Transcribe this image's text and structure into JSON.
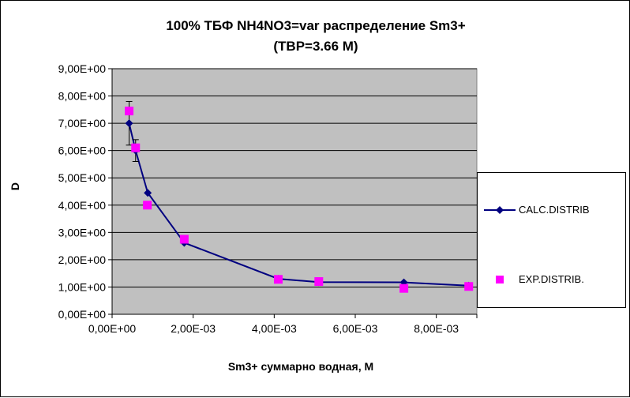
{
  "chart_data": {
    "type": "scatter",
    "title_line1": "100%  ТБФ  NH4NO3=var распределение Sm3+",
    "title_line2": "(ТВР=3.66 М)",
    "xlabel": "Sm3+ суммарно   водная, М",
    "ylabel": "D",
    "xlim": [
      0,
      0.009
    ],
    "ylim": [
      0,
      9
    ],
    "x_ticks": [
      0,
      0.002,
      0.004,
      0.006,
      0.008
    ],
    "x_tick_labels": [
      "0,00E+00",
      "2,00E-03",
      "4,00E-03",
      "6,00E-03",
      "8,00E-03"
    ],
    "y_ticks": [
      0,
      1,
      2,
      3,
      4,
      5,
      6,
      7,
      8,
      9
    ],
    "y_tick_labels": [
      "0,00E+00",
      "1,00E+00",
      "2,00E+00",
      "3,00E+00",
      "4,00E+00",
      "5,00E+00",
      "6,00E+00",
      "7,00E+00",
      "8,00E+00",
      "9,00E+00"
    ],
    "plot_background": "#c0c0c0",
    "grid": "horizontal major",
    "legend_position": "right",
    "series": [
      {
        "name": "CALC.DISTRIB",
        "color": "#000080",
        "marker": "diamond",
        "line": true,
        "points": [
          {
            "x": 0.00042,
            "y": 7.0,
            "err": 0.8
          },
          {
            "x": 0.00058,
            "y": 6.0,
            "err": 0.4
          },
          {
            "x": 0.00088,
            "y": 4.45,
            "err": 0
          },
          {
            "x": 0.00178,
            "y": 2.62,
            "err": 0
          },
          {
            "x": 0.0041,
            "y": 1.3,
            "err": 0.1
          },
          {
            "x": 0.0051,
            "y": 1.18,
            "err": 0.12
          },
          {
            "x": 0.0072,
            "y": 1.17,
            "err": 0
          },
          {
            "x": 0.0088,
            "y": 1.05,
            "err": 0.1
          }
        ]
      },
      {
        "name": "EXP.DISTRIB.",
        "color": "#ff00ff",
        "marker": "square",
        "line": false,
        "points": [
          {
            "x": 0.00042,
            "y": 7.45
          },
          {
            "x": 0.00058,
            "y": 6.1
          },
          {
            "x": 0.00087,
            "y": 4.0
          },
          {
            "x": 0.00178,
            "y": 2.75
          },
          {
            "x": 0.0041,
            "y": 1.28
          },
          {
            "x": 0.0051,
            "y": 1.2
          },
          {
            "x": 0.0072,
            "y": 0.95
          },
          {
            "x": 0.0088,
            "y": 1.02
          }
        ]
      }
    ]
  }
}
